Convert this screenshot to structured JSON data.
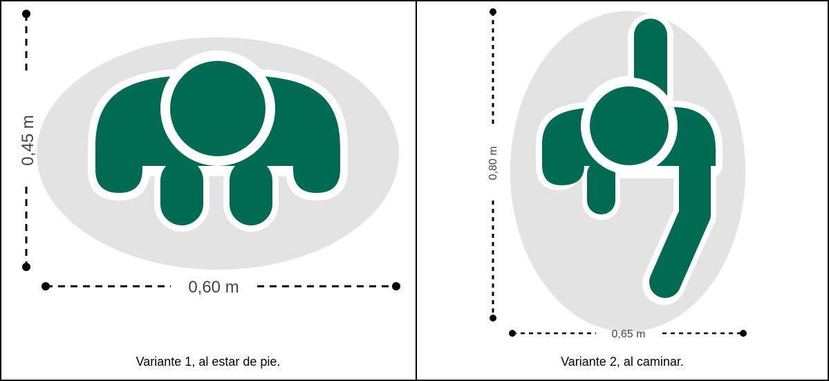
{
  "panels": [
    {
      "height_label": "0,45 m",
      "width_label": "0,60 m",
      "caption": "Variante 1, al estar de pie."
    },
    {
      "height_label": "0,80 m",
      "width_label": "0,65 m",
      "caption": "Variante 2, al caminar."
    }
  ],
  "colors": {
    "figure_green": "#006a52",
    "ellipse_gray": "#e4e3e4",
    "outline_white": "#ffffff",
    "line_black": "#000000",
    "label_gray": "#444444"
  }
}
